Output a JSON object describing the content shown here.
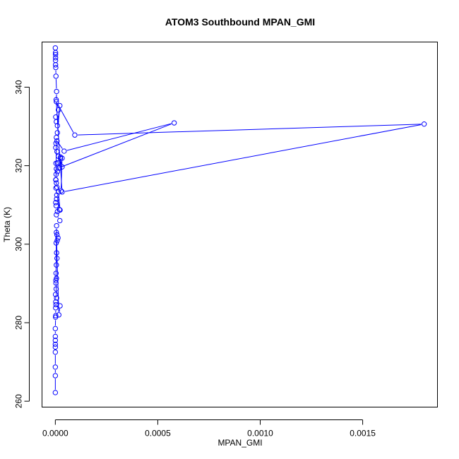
{
  "chart_data": {
    "type": "line",
    "title": "ATOM3 Southbound MPAN_GMI",
    "xlabel": "MPAN_GMI",
    "ylabel": "Theta (K)",
    "xlim": [
      -6.5e-05,
      0.001865
    ],
    "ylim": [
      258.5,
      351.5
    ],
    "x_ticks": [
      0,
      0.0005,
      0.001,
      0.0015
    ],
    "x_tick_labels": [
      "0.0000",
      "0.0005",
      "0.0010",
      "0.0015"
    ],
    "y_ticks": [
      260,
      280,
      300,
      320,
      340
    ],
    "y_tick_labels": [
      "260",
      "280",
      "300",
      "320",
      "340"
    ],
    "grid": false,
    "legend": "none",
    "marker": "open-circle",
    "color": "#0000ff",
    "series": [
      {
        "x": [
          0.0,
          0.0,
          0.0,
          0.0,
          0.0,
          0.0,
          0.0,
          0.0,
          0.0,
          1.2e-06,
          2e-06,
          1.5e-06,
          3e-06,
          2e-06,
          1e-06,
          4e-06,
          2.5e-06,
          5.5e-06,
          3.5e-06,
          5e-06,
          8e-06,
          6e-06,
          4e-06,
          9e-06,
          1.3e-05,
          8e-06,
          5e-06,
          1.7e-05,
          2.3e-05,
          6e-06,
          3e-06,
          6e-06,
          2.2e-05,
          5e-06,
          1e-05,
          2e-05,
          4e-06,
          2e-06,
          6e-06,
          1.5e-05,
          2.3e-05,
          7e-06,
          3e-06,
          5e-06,
          2e-06,
          4e-06,
          1e-05,
          2e-05,
          2.5e-05,
          1e-05,
          5e-06,
          3e-06,
          2.5e-05,
          3.3e-05,
          1.5e-05,
          8e-06,
          2e-06,
          3e-06,
          8e-06,
          4.3e-05,
          0.00058,
          2e-05,
          3.3e-05,
          2.8e-05,
          8e-06,
          3e-06,
          5e-06,
          1e-05,
          2.2e-05,
          1e-05,
          5e-06,
          2e-06,
          1.5e-05,
          4e-06,
          3.3e-05,
          0.0018,
          9.5e-05,
          5e-06,
          6e-06,
          3e-06,
          2e-06,
          1e-06,
          1e-06,
          1e-06,
          1e-06,
          1e-06,
          0.0
        ],
        "y": [
          262.2,
          266.5,
          268.7,
          272.5,
          273.8,
          274.5,
          275.5,
          276.5,
          278.5,
          281.4,
          281.8,
          283.8,
          284.6,
          285.3,
          287.2,
          288.6,
          290.8,
          291.3,
          292.6,
          294.7,
          296.4,
          297.8,
          300.3,
          300.9,
          301.6,
          302.4,
          303.0,
          282.0,
          284.3,
          286.3,
          290.1,
          304.7,
          306.0,
          307.5,
          308.3,
          308.8,
          309.8,
          310.6,
          311.5,
          313.3,
          308.7,
          312.5,
          314.3,
          315.6,
          316.4,
          317.8,
          318.5,
          319.4,
          322.2,
          320.7,
          319.2,
          320.6,
          321.8,
          319.7,
          322.4,
          323.6,
          324.6,
          325.7,
          326.3,
          323.7,
          330.9,
          319.5,
          321.9,
          313.6,
          314.5,
          316.4,
          327.2,
          328.4,
          335.3,
          330.2,
          331.2,
          332.4,
          334.2,
          336.8,
          313.3,
          330.6,
          327.8,
          336.3,
          338.9,
          342.8,
          345.0,
          345.7,
          346.8,
          347.5,
          348.3,
          348.8,
          350.0
        ]
      }
    ]
  }
}
